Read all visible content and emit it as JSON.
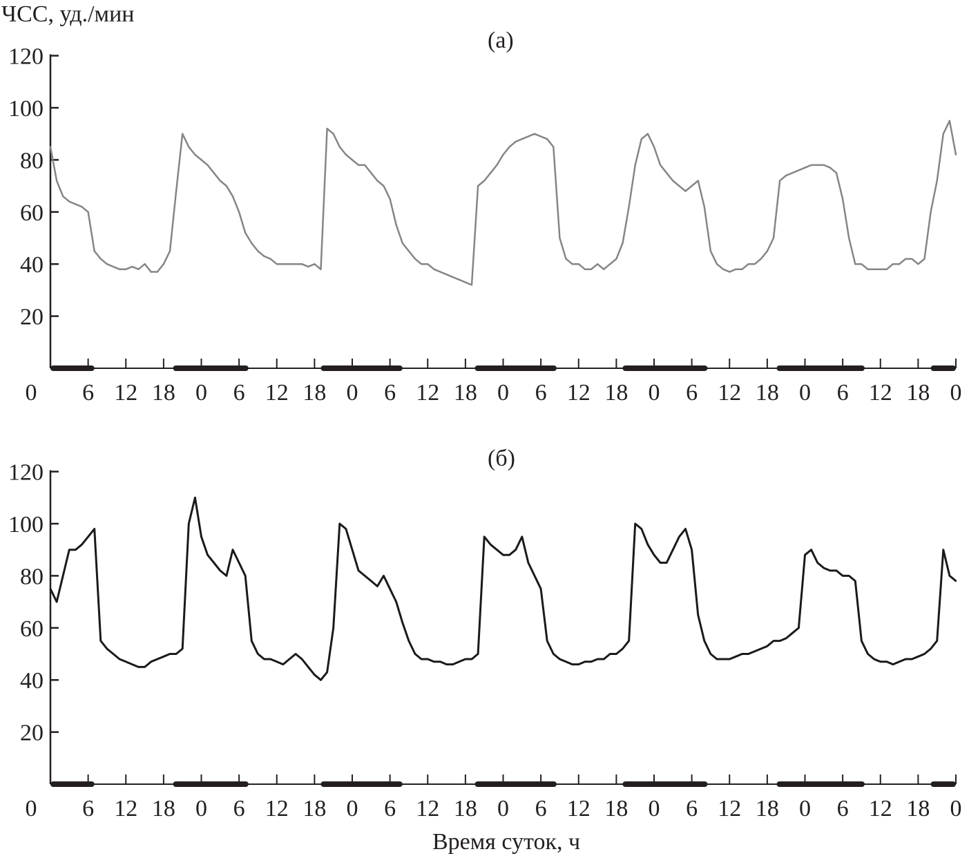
{
  "chart_data": [
    {
      "type": "line",
      "panel_label": "(а)",
      "ylabel": "ЧСС, уд./мин",
      "xlabel": "Время суток, ч",
      "x_unit": "hours from start",
      "xlim": [
        0,
        144
      ],
      "ylim": [
        0,
        120
      ],
      "yticks": [
        20,
        40,
        60,
        80,
        100,
        120
      ],
      "xtick_labels": [
        "0",
        "6",
        "12",
        "18",
        "0",
        "6",
        "12",
        "18",
        "0",
        "6",
        "12",
        "18",
        "0",
        "6",
        "12",
        "18",
        "0",
        "6",
        "12",
        "18",
        "0",
        "6",
        "12",
        "18",
        "0"
      ],
      "night_periods_hours": [
        [
          0,
          7
        ],
        [
          19.5,
          31.5
        ],
        [
          43,
          56
        ],
        [
          67.5,
          80.5
        ],
        [
          91,
          104.5
        ],
        [
          115.5,
          129.5
        ],
        [
          140,
          144
        ]
      ],
      "line_color": "#858585",
      "grid": false,
      "x": "hourly, 0..144",
      "values": [
        85,
        72,
        66,
        64,
        63,
        62,
        60,
        45,
        42,
        40,
        39,
        38,
        38,
        39,
        38,
        40,
        37,
        37,
        40,
        45,
        68,
        90,
        85,
        82,
        80,
        78,
        75,
        72,
        70,
        66,
        60,
        52,
        48,
        45,
        43,
        42,
        40,
        40,
        40,
        40,
        40,
        39,
        40,
        38,
        92,
        90,
        85,
        82,
        80,
        78,
        78,
        75,
        72,
        70,
        65,
        55,
        48,
        45,
        42,
        40,
        40,
        38,
        37,
        36,
        35,
        34,
        33,
        32,
        70,
        72,
        75,
        78,
        82,
        85,
        87,
        88,
        89,
        90,
        89,
        88,
        85,
        50,
        42,
        40,
        40,
        38,
        38,
        40,
        38,
        40,
        42,
        48,
        62,
        78,
        88,
        90,
        85,
        78,
        75,
        72,
        70,
        68,
        70,
        72,
        62,
        45,
        40,
        38,
        37,
        38,
        38,
        40,
        40,
        42,
        45,
        50,
        72,
        74,
        75,
        76,
        77,
        78,
        78,
        78,
        77,
        75,
        65,
        50,
        40,
        40,
        38,
        38,
        38,
        38,
        40,
        40,
        42,
        42,
        40,
        42,
        60,
        72,
        90,
        95,
        82
      ]
    },
    {
      "type": "line",
      "panel_label": "(б)",
      "xlabel": "Время суток, ч",
      "xlim": [
        0,
        144
      ],
      "ylim": [
        0,
        120
      ],
      "yticks": [
        20,
        40,
        60,
        80,
        100,
        120
      ],
      "xtick_labels": [
        "0",
        "6",
        "12",
        "18",
        "0",
        "6",
        "12",
        "18",
        "0",
        "6",
        "12",
        "18",
        "0",
        "6",
        "12",
        "18",
        "0",
        "6",
        "12",
        "18",
        "0",
        "6",
        "12",
        "18",
        "0"
      ],
      "night_periods_hours": [
        [
          0,
          7
        ],
        [
          19.5,
          31.5
        ],
        [
          43,
          56
        ],
        [
          67.5,
          80.5
        ],
        [
          91,
          104.5
        ],
        [
          115.5,
          129.5
        ],
        [
          140,
          144
        ]
      ],
      "line_color": "#1a1a1a",
      "grid": false,
      "x": "hourly, 0..144",
      "values": [
        75,
        70,
        80,
        90,
        90,
        92,
        95,
        98,
        55,
        52,
        50,
        48,
        47,
        46,
        45,
        45,
        47,
        48,
        49,
        50,
        50,
        52,
        100,
        110,
        95,
        88,
        85,
        82,
        80,
        90,
        85,
        80,
        55,
        50,
        48,
        48,
        47,
        46,
        48,
        50,
        48,
        45,
        42,
        40,
        43,
        60,
        100,
        98,
        90,
        82,
        80,
        78,
        76,
        80,
        75,
        70,
        62,
        55,
        50,
        48,
        48,
        47,
        47,
        46,
        46,
        47,
        48,
        48,
        50,
        95,
        92,
        90,
        88,
        88,
        90,
        95,
        85,
        80,
        75,
        55,
        50,
        48,
        47,
        46,
        46,
        47,
        47,
        48,
        48,
        50,
        50,
        52,
        55,
        100,
        98,
        92,
        88,
        85,
        85,
        90,
        95,
        98,
        90,
        65,
        55,
        50,
        48,
        48,
        48,
        49,
        50,
        50,
        51,
        52,
        53,
        55,
        55,
        56,
        58,
        60,
        88,
        90,
        85,
        83,
        82,
        82,
        80,
        80,
        78,
        55,
        50,
        48,
        47,
        47,
        46,
        47,
        48,
        48,
        49,
        50,
        52,
        55,
        90,
        80,
        78
      ]
    }
  ]
}
